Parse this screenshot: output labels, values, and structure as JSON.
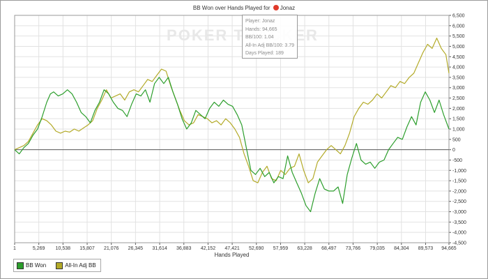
{
  "title": {
    "prefix": "BB Won over Hands Played for",
    "player": "Jonaz"
  },
  "watermark": "POKER TRACKER",
  "tooltip": {
    "player": "Player: Jonaz",
    "hands": "Hands: 94,665",
    "bb100": "BB/100: 1.04",
    "allin": "All-In Adj BB/100: 3.79",
    "days": "Days Played: 189"
  },
  "legend": {
    "items": [
      {
        "label": "BB Won",
        "color": "#2c9e2c"
      },
      {
        "label": "All-In Adj BB",
        "color": "#b3aa28"
      }
    ]
  },
  "colors": {
    "grid": "#e2e2e2",
    "zero_line": "#555555",
    "axis": "#555555",
    "bb_won": "#2c9e2c",
    "allin": "#b3aa28"
  },
  "chart_data": {
    "type": "line",
    "title": "BB Won over Hands Played for Jonaz",
    "xlabel": "Hands Played",
    "ylabel": "",
    "xlim": [
      1,
      94665
    ],
    "ylim": [
      -4500,
      6500
    ],
    "x_ticks": [
      1,
      5269,
      10538,
      15807,
      21076,
      26345,
      31614,
      36883,
      42152,
      47421,
      52690,
      57959,
      63228,
      68497,
      73766,
      79035,
      84304,
      89573,
      94665
    ],
    "x_tick_labels": [
      "1",
      "5,269",
      "10,538",
      "15,807",
      "21,076",
      "26,345",
      "31,614",
      "36,883",
      "42,152",
      "47,421",
      "52,690",
      "57,959",
      "63,228",
      "68,497",
      "73,766",
      "79,035",
      "84,304",
      "89,573",
      "94,665"
    ],
    "y_ticks": [
      -4500,
      -4000,
      -3500,
      -3000,
      -2500,
      -2000,
      -1500,
      -1000,
      -500,
      0,
      500,
      1000,
      1500,
      2000,
      2500,
      3000,
      3500,
      4000,
      4500,
      5000,
      5500,
      6000,
      6500
    ],
    "y_tick_labels": [
      "-4,500",
      "-4,000",
      "-3,500",
      "-3,000",
      "-2,500",
      "-2,000",
      "-1,500",
      "-1,000",
      "-500",
      "0",
      "500",
      "1,000",
      "1,500",
      "2,000",
      "2,500",
      "3,000",
      "3,500",
      "4,000",
      "4,500",
      "5,000",
      "5,500",
      "6,000",
      "6,500"
    ],
    "grid": true,
    "legend_position": "bottom-left",
    "series": [
      {
        "name": "BB Won",
        "color": "#2c9e2c",
        "x": [
          1,
          1000,
          2000,
          3000,
          4000,
          5000,
          6000,
          7000,
          7800,
          8500,
          9500,
          10500,
          11500,
          12500,
          13500,
          14500,
          15500,
          16500,
          17500,
          18500,
          19500,
          20500,
          21500,
          22500,
          23500,
          24500,
          25500,
          26500,
          27500,
          28500,
          29500,
          30500,
          31500,
          32500,
          33500,
          34500,
          35500,
          36500,
          37500,
          38500,
          39500,
          40500,
          41500,
          42500,
          43500,
          44500,
          45500,
          46500,
          47500,
          48500,
          49500,
          50500,
          51500,
          52500,
          53500,
          54500,
          55500,
          56500,
          57500,
          58500,
          59500,
          60500,
          61500,
          62500,
          63500,
          64500,
          65500,
          66500,
          67500,
          68500,
          69500,
          70500,
          71500,
          72500,
          73500,
          74500,
          75500,
          76500,
          77500,
          78500,
          79500,
          80500,
          81500,
          82500,
          83500,
          84500,
          85500,
          86500,
          87500,
          88500,
          89500,
          90500,
          91500,
          92500,
          93500,
          94665
        ],
        "y": [
          0,
          -200,
          100,
          300,
          700,
          1000,
          1600,
          2300,
          2700,
          2800,
          2600,
          2700,
          2900,
          2700,
          2300,
          1800,
          1600,
          1300,
          1900,
          2300,
          2900,
          2700,
          2300,
          2000,
          1900,
          1600,
          2200,
          2700,
          2600,
          2900,
          2300,
          3200,
          3500,
          3200,
          3500,
          2800,
          2200,
          1500,
          1000,
          1300,
          1900,
          1700,
          1500,
          2000,
          2300,
          2100,
          2400,
          2200,
          2100,
          1700,
          1200,
          100,
          -1000,
          -1200,
          -900,
          -1300,
          -1100,
          -1600,
          -1300,
          -1400,
          -300,
          -1100,
          -1600,
          -2100,
          -2700,
          -3000,
          -2100,
          -1400,
          -1900,
          -2000,
          -2000,
          -1800,
          -2600,
          -1200,
          -400,
          300,
          -500,
          -700,
          -600,
          -900,
          -600,
          -500,
          0,
          300,
          600,
          500,
          1100,
          1600,
          1200,
          2300,
          2800,
          2400,
          1800,
          2400,
          1700,
          1000
        ]
      },
      {
        "name": "All-In Adj BB",
        "color": "#b3aa28",
        "x": [
          1,
          1000,
          2000,
          3000,
          4000,
          5000,
          6000,
          7000,
          8000,
          9000,
          10000,
          11000,
          12000,
          13000,
          14000,
          15000,
          16000,
          17000,
          18000,
          19000,
          20000,
          21000,
          22000,
          23000,
          24000,
          25000,
          26000,
          27000,
          28000,
          29000,
          30000,
          31000,
          32000,
          33000,
          34000,
          35000,
          36000,
          37000,
          38000,
          39000,
          40000,
          41000,
          42000,
          43000,
          44000,
          45000,
          46000,
          47000,
          48000,
          49000,
          50000,
          51000,
          52000,
          53000,
          54000,
          55000,
          56000,
          57000,
          58000,
          59000,
          60000,
          61000,
          62000,
          63000,
          64000,
          65000,
          66000,
          67000,
          68000,
          69000,
          70000,
          71000,
          72000,
          73000,
          74000,
          75000,
          76000,
          77000,
          78000,
          79000,
          80000,
          81000,
          82000,
          83000,
          84000,
          85000,
          86000,
          87000,
          88000,
          89000,
          90000,
          91000,
          92000,
          93000,
          94000,
          94665
        ],
        "y": [
          0,
          100,
          200,
          400,
          800,
          1200,
          1500,
          1400,
          1200,
          900,
          800,
          900,
          850,
          1000,
          900,
          1050,
          1200,
          1400,
          2000,
          2400,
          2900,
          2500,
          2600,
          2700,
          2400,
          2800,
          2900,
          2800,
          3100,
          3400,
          3300,
          3600,
          3900,
          3800,
          3100,
          2500,
          1900,
          1400,
          1200,
          1300,
          1700,
          1600,
          1500,
          1300,
          1400,
          1200,
          1500,
          1300,
          1000,
          600,
          -200,
          -800,
          -1500,
          -1600,
          -1100,
          -800,
          -1400,
          -1500,
          -1000,
          -1200,
          -900,
          -800,
          -200,
          -1000,
          -1600,
          -1400,
          -600,
          -300,
          0,
          200,
          0,
          -200,
          200,
          800,
          1600,
          2000,
          2300,
          2200,
          2400,
          2700,
          2500,
          2800,
          3100,
          3000,
          3300,
          3200,
          3500,
          3700,
          4200,
          4700,
          5100,
          4900,
          5400,
          4900,
          4600,
          3700
        ]
      }
    ]
  }
}
